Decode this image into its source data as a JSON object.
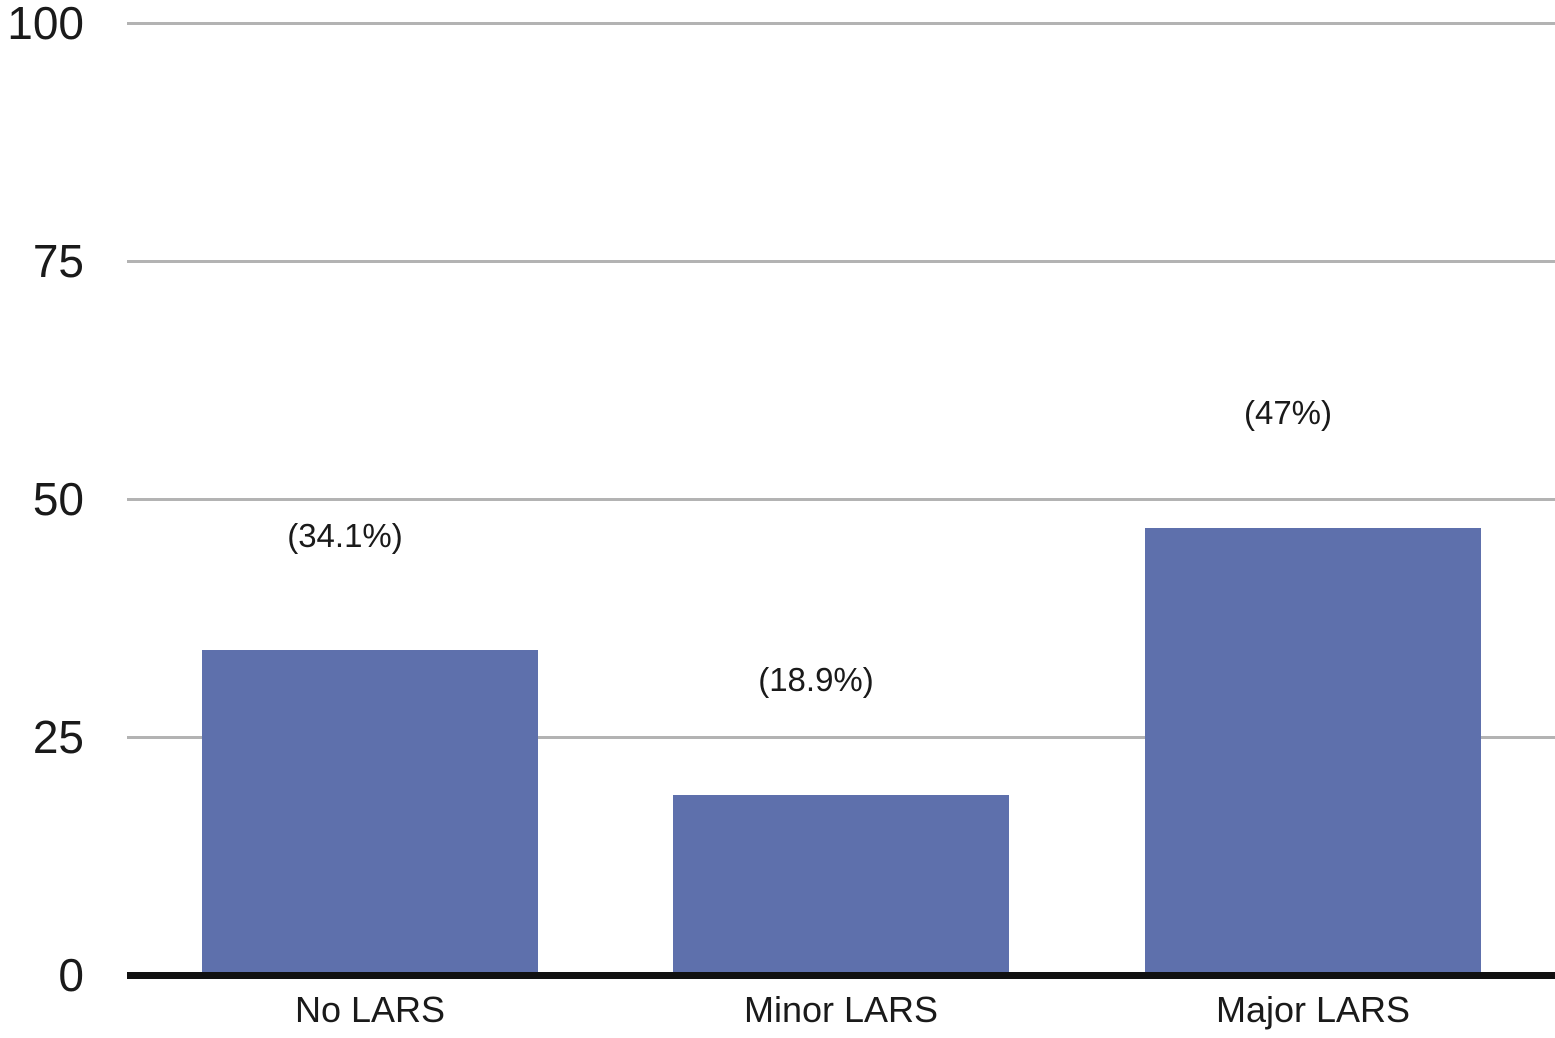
{
  "chart_data": {
    "type": "bar",
    "categories": [
      "No LARS",
      "Minor LARS",
      "Major LARS"
    ],
    "values": [
      34.1,
      18.9,
      47
    ],
    "bar_value_labels": [
      "(34.1%)",
      "(18.9%)",
      "(47%)"
    ],
    "title": "",
    "xlabel": "",
    "ylabel": "",
    "ylim": [
      0,
      100
    ],
    "yticks": [
      0,
      25,
      50,
      75,
      100
    ],
    "ytick_labels": [
      "0",
      "25",
      "50",
      "75",
      "100"
    ],
    "grid": true,
    "legend_position": "none",
    "colors": {
      "bar": "#5E70AC",
      "gridline": "#B3B3B3",
      "axis": "#111111",
      "text": "#1A1A1A",
      "background": "#FFFFFF"
    }
  }
}
